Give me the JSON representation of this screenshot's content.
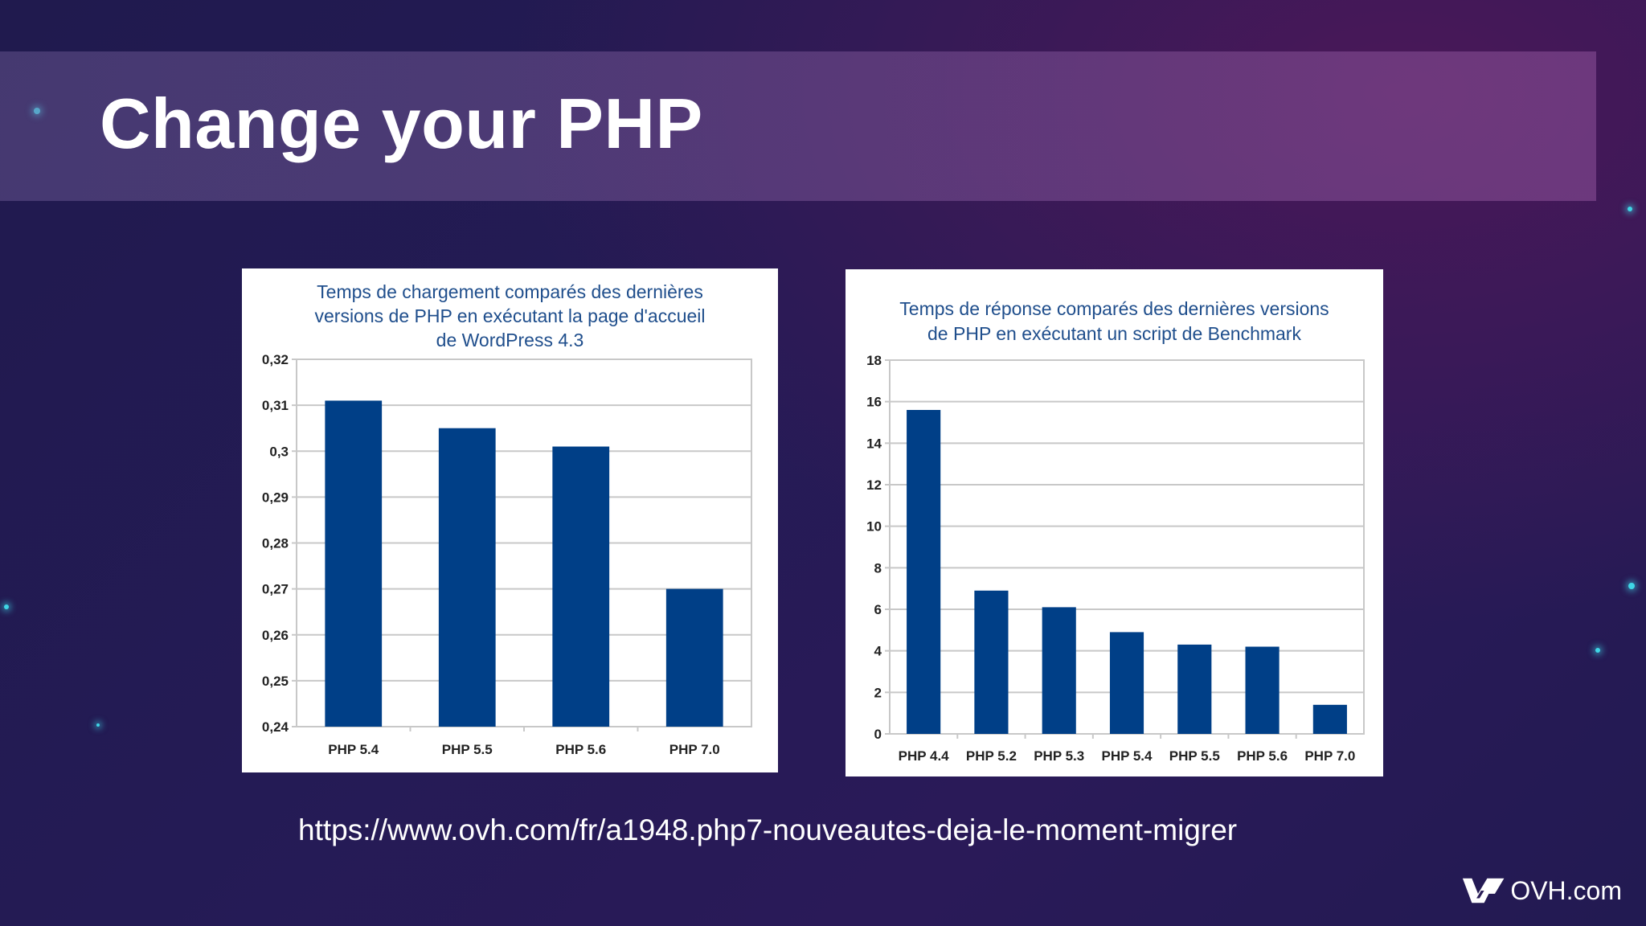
{
  "slide": {
    "title": "Change your PHP",
    "url": "https://www.ovh.com/fr/a1948.php7-nouveautes-deja-le-moment-migrer",
    "logo_text": "OVH.com"
  },
  "colors": {
    "bar": "#003f87",
    "chart_title": "#1f4e8c",
    "grid": "#c8c8c8",
    "axis_text": "#222222"
  },
  "chart_data": [
    {
      "type": "bar",
      "title_lines": [
        "Temps de chargement comparés des dernières",
        "versions de PHP en exécutant la page d'accueil",
        "de WordPress 4.3"
      ],
      "categories": [
        "PHP 5.4",
        "PHP 5.5",
        "PHP 5.6",
        "PHP 7.0"
      ],
      "values": [
        0.311,
        0.305,
        0.301,
        0.27
      ],
      "ylim": [
        0.24,
        0.32
      ],
      "yticks": [
        0.24,
        0.25,
        0.26,
        0.27,
        0.28,
        0.29,
        0.3,
        0.31,
        0.32
      ],
      "ytick_labels": [
        "0,24",
        "0,25",
        "0,26",
        "0,27",
        "0,28",
        "0,29",
        "0,3",
        "0,31",
        "0,32"
      ],
      "grid": true,
      "legend": "none"
    },
    {
      "type": "bar",
      "title_lines": [
        "Temps de réponse comparés des dernières versions",
        "de PHP en exécutant un script de Benchmark"
      ],
      "categories": [
        "PHP 4.4",
        "PHP 5.2",
        "PHP 5.3",
        "PHP 5.4",
        "PHP 5.5",
        "PHP 5.6",
        "PHP 7.0"
      ],
      "values": [
        15.6,
        6.9,
        6.1,
        4.9,
        4.3,
        4.2,
        1.4
      ],
      "ylim": [
        0,
        18
      ],
      "yticks": [
        0,
        2,
        4,
        6,
        8,
        10,
        12,
        14,
        16,
        18
      ],
      "ytick_labels": [
        "0",
        "2",
        "4",
        "6",
        "8",
        "10",
        "12",
        "14",
        "16",
        "18"
      ],
      "grid": true,
      "legend": "none"
    }
  ]
}
